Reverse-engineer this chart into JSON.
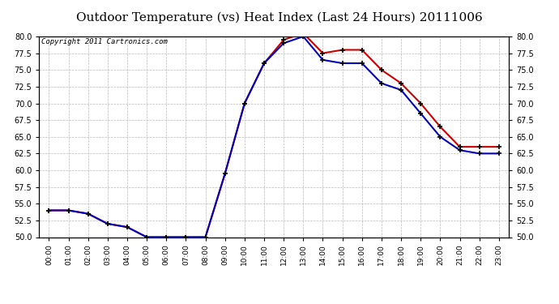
{
  "title": "Outdoor Temperature (vs) Heat Index (Last 24 Hours) 20111006",
  "copyright": "Copyright 2011 Cartronics.com",
  "hours": [
    "00:00",
    "01:00",
    "02:00",
    "03:00",
    "04:00",
    "05:00",
    "06:00",
    "07:00",
    "08:00",
    "09:00",
    "10:00",
    "11:00",
    "12:00",
    "13:00",
    "14:00",
    "15:00",
    "16:00",
    "17:00",
    "18:00",
    "19:00",
    "20:00",
    "21:00",
    "22:00",
    "23:00"
  ],
  "temp": [
    54.0,
    54.0,
    53.5,
    52.0,
    51.5,
    50.0,
    50.0,
    50.0,
    50.0,
    59.5,
    70.0,
    76.0,
    79.5,
    80.5,
    77.5,
    78.0,
    78.0,
    75.0,
    73.0,
    70.0,
    66.5,
    63.5,
    63.5,
    63.5
  ],
  "heat_index": [
    54.0,
    54.0,
    53.5,
    52.0,
    51.5,
    50.0,
    50.0,
    50.0,
    50.0,
    59.5,
    70.0,
    76.0,
    79.0,
    80.0,
    76.5,
    76.0,
    76.0,
    73.0,
    72.0,
    68.5,
    65.0,
    63.0,
    62.5,
    62.5
  ],
  "ylim": [
    50.0,
    80.0
  ],
  "yticks": [
    50.0,
    52.5,
    55.0,
    57.5,
    60.0,
    62.5,
    65.0,
    67.5,
    70.0,
    72.5,
    75.0,
    77.5,
    80.0
  ],
  "temp_color": "#cc0000",
  "heat_color": "#0000bb",
  "bg_color": "#ffffff",
  "plot_bg": "#ffffff",
  "grid_color": "#bbbbbb",
  "title_fontsize": 11,
  "copyright_fontsize": 6.5
}
